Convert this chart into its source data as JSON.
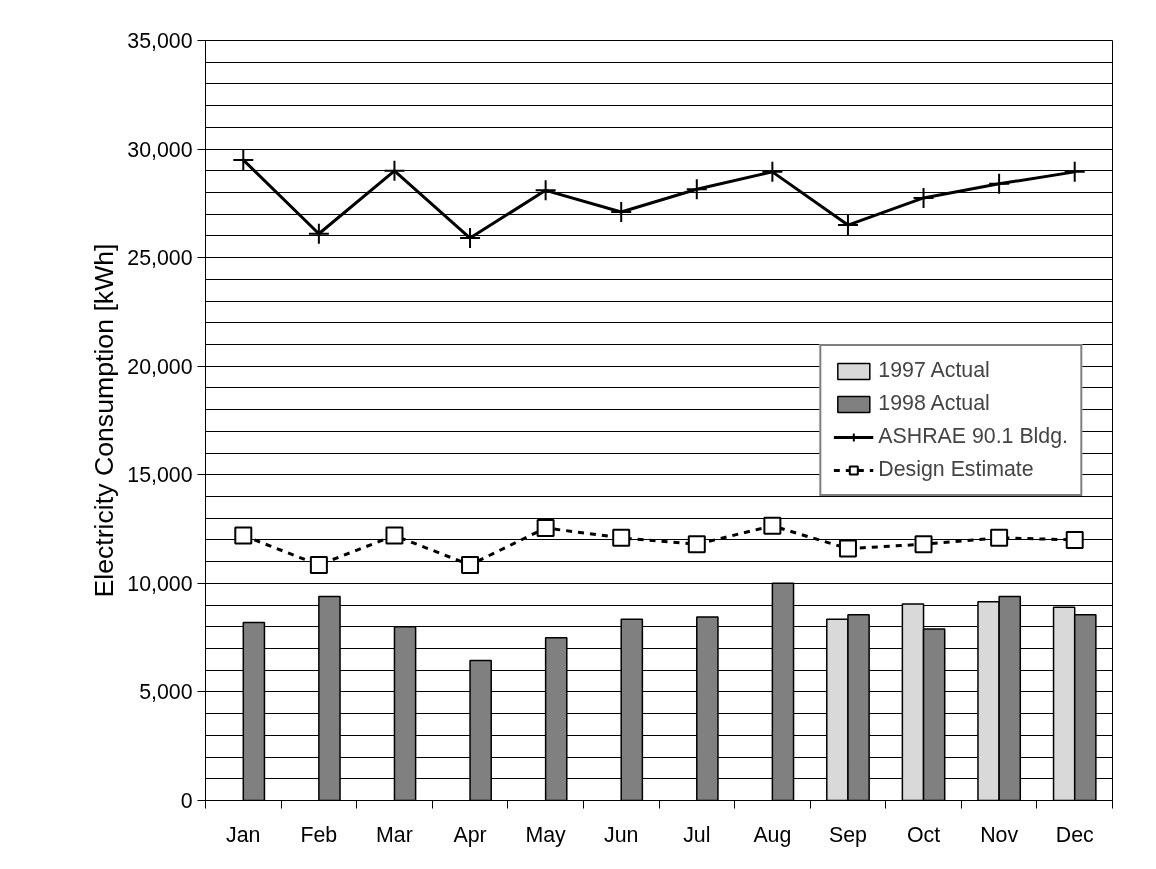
{
  "chart_data": {
    "type": "bar",
    "ylabel": "Electricity Consumption [kWh]",
    "categories": [
      "Jan",
      "Feb",
      "Mar",
      "Apr",
      "May",
      "Jun",
      "Jul",
      "Aug",
      "Sep",
      "Oct",
      "Nov",
      "Dec"
    ],
    "series": [
      {
        "name": "1997 Actual",
        "color": "#d9d9d9",
        "values": [
          null,
          null,
          null,
          null,
          null,
          null,
          null,
          null,
          8350,
          9050,
          9150,
          8900
        ]
      },
      {
        "name": "1998 Actual",
        "color": "#808080",
        "values": [
          8200,
          9400,
          8000,
          6450,
          7500,
          8350,
          8450,
          10000,
          8550,
          7900,
          9400,
          8550
        ]
      },
      {
        "name": "ASHRAE 90.1 Bldg.",
        "type": "line",
        "color": "#000000",
        "marker": "cross",
        "line_style": "solid",
        "values": [
          29500,
          26100,
          29000,
          25900,
          28100,
          27100,
          28150,
          28950,
          26500,
          27750,
          28400,
          28950
        ]
      },
      {
        "name": "Design Estimate",
        "type": "line",
        "color": "#000000",
        "marker": "square",
        "line_style": "dashed",
        "values": [
          12200,
          10850,
          12200,
          10850,
          12550,
          12100,
          11800,
          12650,
          11600,
          11800,
          12100,
          12000
        ]
      }
    ],
    "ylim": [
      0,
      35000
    ],
    "yticks": [
      {
        "value": 0,
        "label": "0"
      },
      {
        "value": 1000,
        "label": null
      },
      {
        "value": 2000,
        "label": null
      },
      {
        "value": 3000,
        "label": null
      },
      {
        "value": 4000,
        "label": null
      },
      {
        "value": 5000,
        "label": "5,000"
      },
      {
        "value": 6000,
        "label": null
      },
      {
        "value": 7000,
        "label": null
      },
      {
        "value": 8000,
        "label": null
      },
      {
        "value": 9000,
        "label": null
      },
      {
        "value": 10000,
        "label": "10,000"
      },
      {
        "value": 11000,
        "label": null
      },
      {
        "value": 12000,
        "label": null
      },
      {
        "value": 13000,
        "label": null
      },
      {
        "value": 14000,
        "label": null
      },
      {
        "value": 15000,
        "label": "15,000"
      },
      {
        "value": 16000,
        "label": null
      },
      {
        "value": 17000,
        "label": null
      },
      {
        "value": 18000,
        "label": null
      },
      {
        "value": 19000,
        "label": null
      },
      {
        "value": 20000,
        "label": "20,000"
      },
      {
        "value": 21000,
        "label": null
      },
      {
        "value": 22000,
        "label": null
      },
      {
        "value": 23000,
        "label": null
      },
      {
        "value": 24000,
        "label": null
      },
      {
        "value": 25000,
        "label": "25,000"
      },
      {
        "value": 26000,
        "label": null
      },
      {
        "value": 27000,
        "label": null
      },
      {
        "value": 28000,
        "label": null
      },
      {
        "value": 29000,
        "label": null
      },
      {
        "value": 30000,
        "label": "30,000"
      },
      {
        "value": 31000,
        "label": null
      },
      {
        "value": 32000,
        "label": null
      },
      {
        "value": 33000,
        "label": null
      },
      {
        "value": 34000,
        "label": null
      },
      {
        "value": 35000,
        "label": "35,000"
      }
    ],
    "grid": "y",
    "legend": "right"
  }
}
